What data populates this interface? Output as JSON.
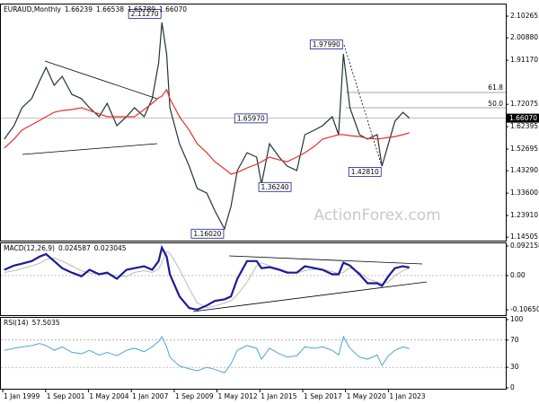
{
  "chart_data": [
    {
      "type": "line",
      "title": "EURAUD,Monthly",
      "header_values": [
        1.66239,
        1.66538,
        1.65789,
        {
          "value": 1.6607,
          "label": "1.66070"
        }
      ],
      "xlim": [
        1998.83,
        2030.3
      ],
      "x": [
        1999.1,
        1999.7,
        2000.2,
        2000.8,
        2001.3,
        2001.7,
        2002.2,
        2002.7,
        2003.3,
        2003.9,
        2004.4,
        2005.0,
        2005.5,
        2006.1,
        2006.7,
        2007.2,
        2007.8,
        2008.3,
        2008.7,
        2008.9,
        2009.2,
        2009.4,
        2010.0,
        2010.6,
        2011.1,
        2011.7,
        2012.2,
        2012.8,
        2013.2,
        2013.6,
        2014.2,
        2014.8,
        2015.1,
        2015.6,
        2016.2,
        2016.7,
        2017.3,
        2017.8,
        2018.4,
        2018.9,
        2019.5,
        2019.9,
        2020.2,
        2020.6,
        2021.2,
        2021.7,
        2022.3,
        2022.6,
        2023.0,
        2023.4,
        2023.9,
        2024.3
      ],
      "series": [
        {
          "color": "#1e3535",
          "values": [
            1.57,
            1.628,
            1.706,
            1.745,
            1.823,
            1.881,
            1.803,
            1.842,
            1.764,
            1.745,
            1.706,
            1.667,
            1.725,
            1.628,
            1.667,
            1.706,
            1.667,
            1.745,
            1.9,
            2.075,
            1.939,
            1.706,
            1.55,
            1.453,
            1.356,
            1.336,
            1.259,
            1.181,
            1.278,
            1.434,
            1.511,
            1.492,
            1.375,
            1.55,
            1.492,
            1.453,
            1.434,
            1.589,
            1.609,
            1.628,
            1.667,
            1.589,
            1.939,
            1.706,
            1.589,
            1.57,
            1.589,
            1.453,
            1.55,
            1.647,
            1.686,
            1.661
          ]
        },
        {
          "color": "#e8302a",
          "values": [
            1.531,
            1.57,
            1.609,
            1.632,
            1.651,
            1.667,
            1.686,
            1.694,
            1.698,
            1.706,
            1.694,
            1.679,
            1.667,
            1.667,
            1.667,
            1.667,
            1.698,
            1.725,
            1.749,
            1.756,
            1.784,
            1.745,
            1.667,
            1.609,
            1.55,
            1.511,
            1.472,
            1.441,
            1.418,
            1.426,
            1.445,
            1.461,
            1.472,
            1.492,
            1.48,
            1.472,
            1.492,
            1.511,
            1.539,
            1.57,
            1.581,
            1.589,
            1.589,
            1.585,
            1.581,
            1.573,
            1.57,
            1.573,
            1.577,
            1.581,
            1.589,
            1.597
          ]
        }
      ],
      "ylim": [
        1.1302,
        2.1532
      ],
      "yticks": [
        2.10265,
        {
          "value": 2.0088,
          "label": "2.00880"
        },
        {
          "value": 1.9117,
          "label": "1.91170"
        },
        1.72075,
        1.62395,
        1.52695,
        {
          "value": 1.4329,
          "label": "1.43290"
        },
        {
          "value": 1.336,
          "label": "1.33600"
        },
        {
          "value": 1.2391,
          "label": "1.23910"
        },
        1.14505
      ],
      "last_price": {
        "value": 1.6607,
        "label": "1.66070"
      },
      "annotations": [
        {
          "value": 2.1127,
          "label": "2.11270",
          "x": 2008.9
        },
        {
          "value": 1.9799,
          "label": "1.97990",
          "x": 2020.2
        },
        {
          "value": 1.6597,
          "label": "1.65970",
          "x": 2015.5
        },
        {
          "value": 1.3624,
          "label": "1.36240",
          "x": 2017.0
        },
        {
          "value": 1.1602,
          "label": "1.16020",
          "x": 2012.8
        },
        {
          "value": 1.4281,
          "label": "1.42810",
          "x": 2022.6
        }
      ],
      "fib_levels": [
        "61.8",
        "50.0"
      ],
      "watermark": "ActionForex.com"
    },
    {
      "type": "line",
      "title": "MACD(12,26,9)",
      "header_values": [
        0.024587,
        0.023045
      ],
      "xlim": [
        1998.83,
        2030.3
      ],
      "x": [
        1999.1,
        1999.7,
        2000.2,
        2000.8,
        2001.3,
        2001.7,
        2002.2,
        2002.7,
        2003.3,
        2003.9,
        2004.4,
        2005.0,
        2005.5,
        2006.1,
        2006.7,
        2007.2,
        2007.8,
        2008.3,
        2008.7,
        2008.9,
        2009.2,
        2009.4,
        2010.0,
        2010.6,
        2011.1,
        2011.7,
        2012.2,
        2012.8,
        2013.2,
        2013.6,
        2014.2,
        2014.8,
        2015.1,
        2015.6,
        2016.2,
        2016.7,
        2017.3,
        2017.8,
        2018.4,
        2018.9,
        2019.5,
        2019.9,
        2020.2,
        2020.6,
        2021.2,
        2021.7,
        2022.3,
        2022.6,
        2023.0,
        2023.4,
        2023.9,
        2024.3
      ],
      "series": [
        {
          "color": "#b4b4b4",
          "values": [
            0.01,
            0.015,
            0.022,
            0.03,
            0.038,
            0.05,
            0.055,
            0.045,
            0.03,
            0.015,
            0.008,
            0.004,
            0.005,
            0.0,
            -0.003,
            0.01,
            0.015,
            0.01,
            0.02,
            0.04,
            0.075,
            0.07,
            0.02,
            -0.04,
            -0.085,
            -0.1,
            -0.095,
            -0.085,
            -0.078,
            -0.06,
            -0.02,
            0.03,
            0.04,
            0.03,
            0.022,
            0.012,
            0.008,
            0.015,
            0.02,
            0.02,
            0.012,
            0.006,
            0.01,
            0.025,
            0.01,
            -0.01,
            -0.02,
            -0.025,
            -0.02,
            0.0,
            0.015,
            0.023
          ]
        },
        {
          "color": "#1a1a96",
          "values": [
            0.018,
            0.031,
            0.037,
            0.045,
            0.059,
            0.067,
            0.045,
            0.023,
            0.009,
            -0.002,
            0.018,
            0.004,
            0.009,
            -0.01,
            0.018,
            0.023,
            0.029,
            0.018,
            0.045,
            0.087,
            0.059,
            0.004,
            -0.065,
            -0.101,
            -0.106,
            -0.093,
            -0.079,
            -0.074,
            -0.065,
            -0.01,
            0.045,
            0.045,
            0.023,
            0.026,
            0.018,
            0.009,
            0.009,
            0.029,
            0.023,
            0.018,
            0.004,
            0.004,
            0.04,
            0.031,
            0.004,
            -0.024,
            -0.024,
            -0.032,
            -0.002,
            0.023,
            0.029,
            0.025
          ]
        }
      ],
      "ylim": [
        -0.1231,
        0.1004
      ],
      "yticks": [
        0.092158,
        {
          "value": 0,
          "label": "0.00"
        },
        -0.106503
      ],
      "levels": [
        0
      ]
    },
    {
      "type": "line",
      "title": "RSI(14)",
      "header_values": [
        57.5035
      ],
      "xlim": [
        1998.83,
        2030.3
      ],
      "x": [
        1999.1,
        1999.7,
        2000.2,
        2000.8,
        2001.3,
        2001.7,
        2002.2,
        2002.7,
        2003.3,
        2003.9,
        2004.4,
        2005.0,
        2005.5,
        2006.1,
        2006.7,
        2007.2,
        2007.8,
        2008.3,
        2008.7,
        2008.9,
        2009.2,
        2009.4,
        2010.0,
        2010.6,
        2011.1,
        2011.7,
        2012.2,
        2012.8,
        2013.2,
        2013.6,
        2014.2,
        2014.8,
        2015.1,
        2015.6,
        2016.2,
        2016.7,
        2017.3,
        2017.8,
        2018.4,
        2018.9,
        2019.5,
        2019.9,
        2020.2,
        2020.6,
        2021.2,
        2021.7,
        2022.3,
        2022.6,
        2023.0,
        2023.4,
        2023.9,
        2024.3
      ],
      "series": [
        {
          "color": "#3c9ad8",
          "values": [
            55,
            58,
            60,
            62,
            65,
            62,
            55,
            60,
            52,
            50,
            55,
            48,
            52,
            47,
            55,
            58,
            53,
            60,
            68,
            75,
            60,
            45,
            32,
            28,
            25,
            30,
            27,
            22,
            35,
            55,
            62,
            58,
            42,
            58,
            50,
            45,
            47,
            60,
            58,
            60,
            55,
            48,
            75,
            58,
            45,
            42,
            48,
            33,
            47,
            55,
            60,
            57.5
          ]
        }
      ],
      "ylim": [
        -1.3,
        102.6
      ],
      "yticks": [
        100,
        70,
        30,
        0
      ],
      "levels": [
        70,
        30
      ],
      "xticks": [
        {
          "value": 1999.0,
          "label": "1 Jan 1999"
        },
        {
          "value": 2001.67,
          "label": "1 Sep 2001"
        },
        {
          "value": 2004.33,
          "label": "1 May 2004"
        },
        {
          "value": 2007.0,
          "label": "1 Jan 2007"
        },
        {
          "value": 2009.67,
          "label": "1 Sep 2009"
        },
        {
          "value": 2012.33,
          "label": "1 May 2012"
        },
        {
          "value": 2015.0,
          "label": "1 Jan 2015"
        },
        {
          "value": 2017.67,
          "label": "1 Sep 2017"
        },
        {
          "value": 2020.33,
          "label": "1 May 2020"
        },
        {
          "value": 2023.0,
          "label": "1 Jan 2023"
        }
      ]
    }
  ]
}
